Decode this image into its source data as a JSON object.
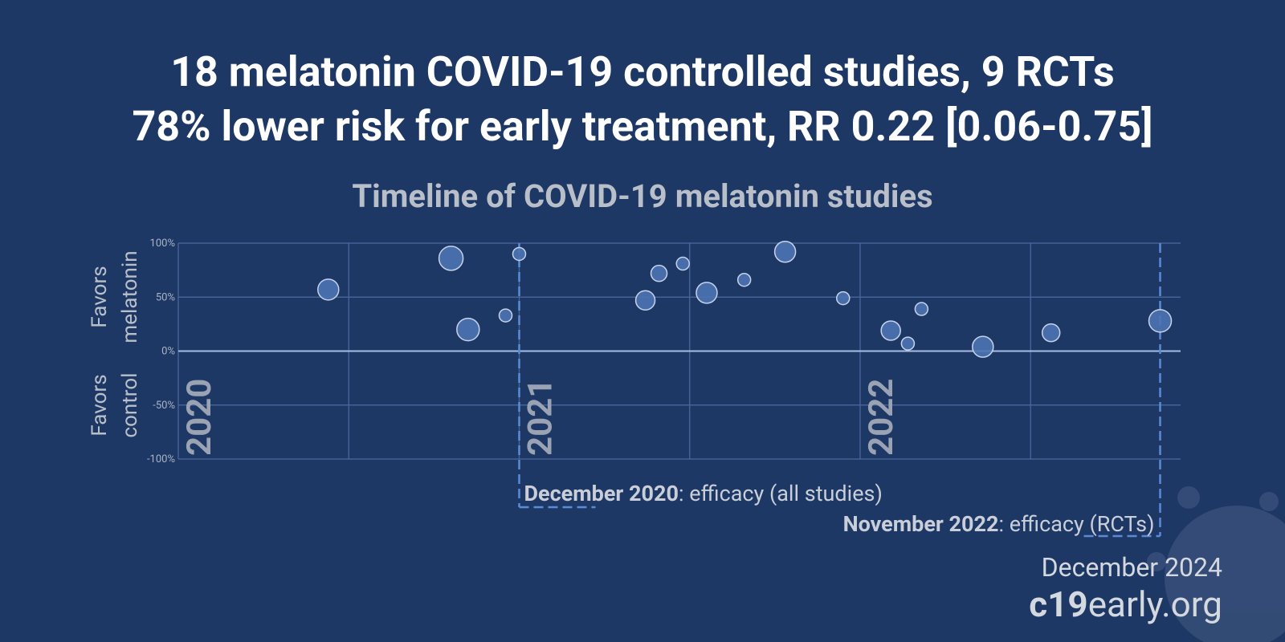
{
  "chart_data": {
    "type": "scatter",
    "title": [
      "18 melatonin COVID-19 controlled studies, 9 RCTs",
      "78% lower risk for early treatment, RR 0.22 [0.06-0.75]"
    ],
    "subtitle": "Timeline of COVID-19 melatonin studies",
    "ylabel_positive": [
      "Favors",
      "melatonin"
    ],
    "ylabel_negative": [
      "Favors",
      "control"
    ],
    "xlim": [
      2020,
      2022.94
    ],
    "xticks": [
      2020,
      2021,
      2022
    ],
    "xgrid": [
      2020,
      2020.5,
      2021,
      2021.5,
      2022,
      2022.5
    ],
    "ylim": [
      -100,
      100
    ],
    "yticks": [
      {
        "value": -100,
        "label": "-100%"
      },
      {
        "value": -50,
        "label": "-50%"
      },
      {
        "value": 0,
        "label": "0%"
      },
      {
        "value": 50,
        "label": "50%"
      },
      {
        "value": 100,
        "label": "100%"
      }
    ],
    "grid": true,
    "series": [
      {
        "color": "#4b74b3",
        "x": [
          2020.44,
          2020.8,
          2020.85,
          2020.96,
          2021.0,
          2021.37,
          2021.41,
          2021.48,
          2021.55,
          2021.66,
          2021.78,
          2021.95,
          2022.09,
          2022.14,
          2022.18,
          2022.36,
          2022.56,
          2022.88
        ],
        "values": [
          57,
          86,
          20,
          33,
          90,
          47,
          72,
          81,
          54,
          66,
          92,
          49,
          19,
          7,
          39,
          4,
          17,
          28
        ],
        "sizes": [
          13,
          15,
          14,
          8,
          8,
          12,
          10,
          8,
          13,
          8,
          13,
          8,
          12,
          8,
          8,
          13,
          11,
          14
        ]
      }
    ],
    "annotations": [
      {
        "x": 2021.0,
        "label_bold": "December 2020",
        "label": ": efficacy (all studies)"
      },
      {
        "x": 2022.88,
        "label_bold": "November 2022",
        "label": ": efficacy (RCTs)"
      }
    ],
    "footer": {
      "date": "December 2024",
      "site_bold": "c19",
      "site": "early.org"
    }
  }
}
